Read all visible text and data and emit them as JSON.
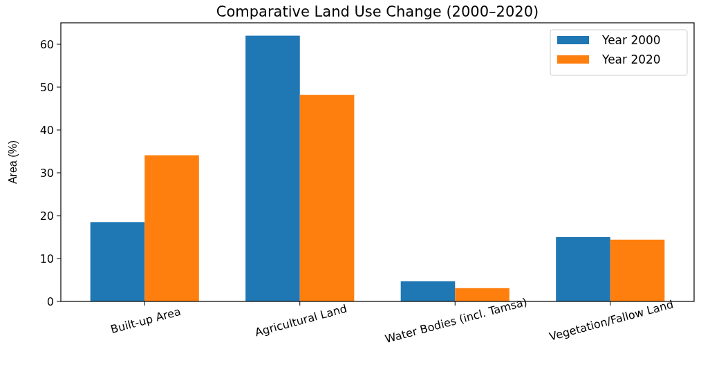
{
  "chart_data": {
    "type": "bar",
    "title": "Comparative Land Use Change (2000–2020)",
    "ylabel": "Area (%)",
    "categories": [
      "Built-up Area",
      "Agricultural Land",
      "Water Bodies (incl. Tamsa)",
      "Vegetation/Fallow Land"
    ],
    "series": [
      {
        "name": "Year 2000",
        "color": "#1f77b4",
        "values": [
          18.5,
          62,
          4.7,
          15
        ]
      },
      {
        "name": "Year 2020",
        "color": "#ff7f0e",
        "values": [
          34.1,
          48.2,
          3.1,
          14.4
        ]
      }
    ],
    "ylim": [
      0,
      65
    ],
    "yticks": [
      0,
      10,
      20,
      30,
      40,
      50,
      60
    ],
    "grid": false,
    "legend": "top right"
  }
}
